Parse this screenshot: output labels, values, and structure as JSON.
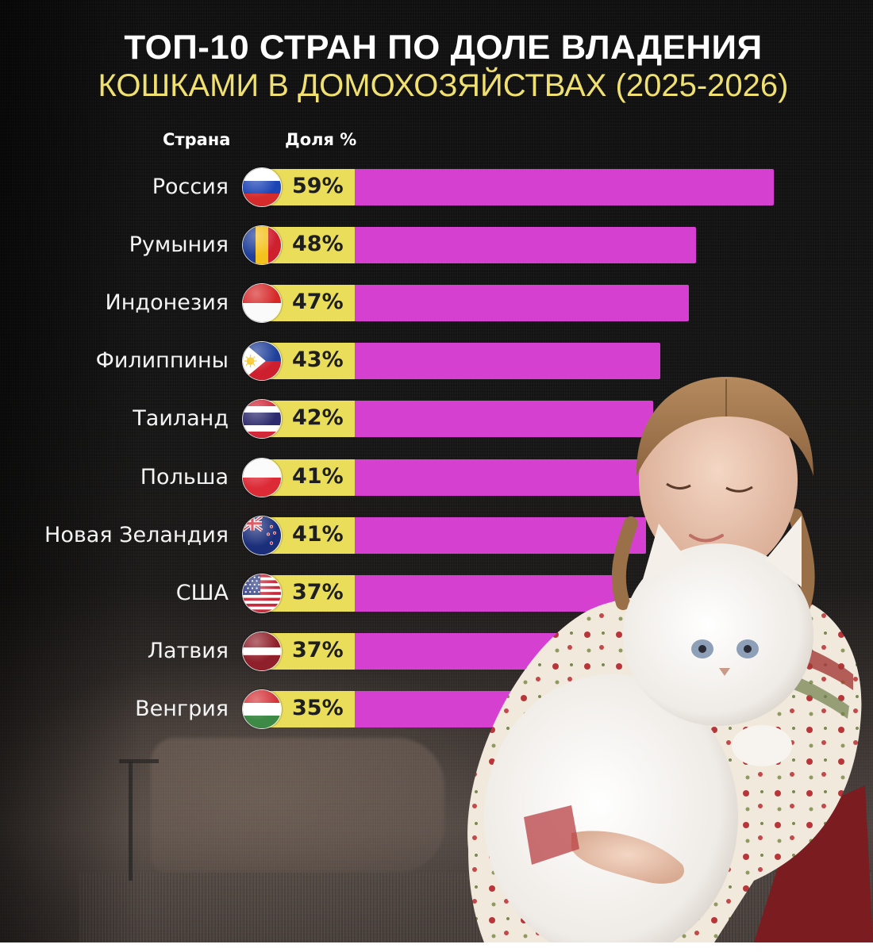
{
  "title": {
    "line1": "ТОП-10 СТРАН ПО ДОЛЕ ВЛАДЕНИЯ",
    "line2": "КОШКАМИ В ДОМОХОЗЯЙСТВАХ (2025-2026)"
  },
  "columns": {
    "country": "Страна",
    "share": "Доля %"
  },
  "colors": {
    "background": "#141414",
    "title_main": "#ffffff",
    "title_sub": "#f0e070",
    "pct_box": "#e9dd5a",
    "bar": "#d640d0",
    "label": "#f4f4f4"
  },
  "rows": [
    {
      "country": "Россия",
      "pct_label": "59%",
      "flag": "russia-flag-icon"
    },
    {
      "country": "Румыния",
      "pct_label": "48%",
      "flag": "romania-flag-icon"
    },
    {
      "country": "Индонезия",
      "pct_label": "47%",
      "flag": "indonesia-flag-icon"
    },
    {
      "country": "Филиппины",
      "pct_label": "43%",
      "flag": "philippines-flag-icon"
    },
    {
      "country": "Таиланд",
      "pct_label": "42%",
      "flag": "thailand-flag-icon"
    },
    {
      "country": "Польша",
      "pct_label": "41%",
      "flag": "poland-flag-icon"
    },
    {
      "country": "Новая Зеландия",
      "pct_label": "41%",
      "flag": "new-zealand-flag-icon"
    },
    {
      "country": "США",
      "pct_label": "37%",
      "flag": "usa-flag-icon"
    },
    {
      "country": "Латвия",
      "pct_label": "37%",
      "flag": "latvia-flag-icon"
    },
    {
      "country": "Венгрия",
      "pct_label": "35%",
      "flag": "hungary-flag-icon"
    }
  ],
  "photo": {
    "description": "woman in floral folk blouse holding a white fluffy cat"
  },
  "chart_data": {
    "type": "bar",
    "orientation": "horizontal",
    "title": "ТОП-10 СТРАН ПО ДОЛЕ ВЛАДЕНИЯ КОШКАМИ В ДОМОХОЗЯЙСТВАХ (2025-2026)",
    "xlabel": "Доля %",
    "ylabel": "Страна",
    "categories": [
      "Россия",
      "Румыния",
      "Индонезия",
      "Филиппины",
      "Таиланд",
      "Польша",
      "Новая Зеландия",
      "США",
      "Латвия",
      "Венгрия"
    ],
    "values": [
      59,
      48,
      47,
      43,
      42,
      41,
      41,
      37,
      37,
      35
    ],
    "unit": "%",
    "grid": false,
    "legend": null,
    "data_labels": true,
    "bar_color": "#d640d0"
  }
}
